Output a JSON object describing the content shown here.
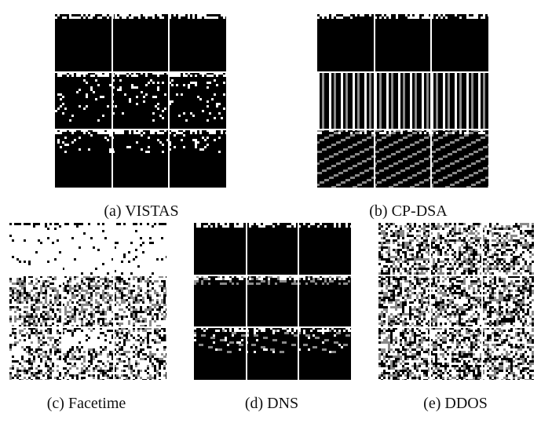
{
  "figure": {
    "panels": [
      {
        "id": "a",
        "caption": "(a)  VISTAS",
        "pattern": "sparse-top"
      },
      {
        "id": "b",
        "caption": "(b)  CP-DSA",
        "pattern": "stripes"
      },
      {
        "id": "c",
        "caption": "(c)  Facetime",
        "pattern": "dense-light"
      },
      {
        "id": "d",
        "caption": "(d)  DNS",
        "pattern": "sparse-bands"
      },
      {
        "id": "e",
        "caption": "(e)  DDOS",
        "pattern": "noise"
      }
    ],
    "grid": {
      "rows": 3,
      "cols": 3
    },
    "colors": {
      "background": "#000000",
      "foreground": "#ffffff",
      "gray": "#8a8a8a"
    }
  }
}
